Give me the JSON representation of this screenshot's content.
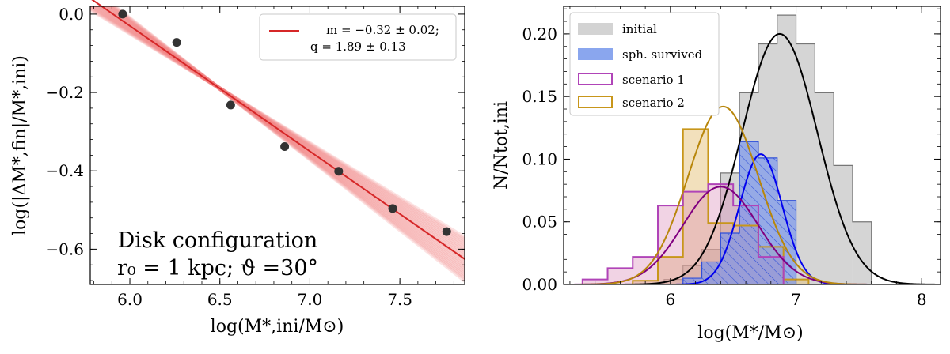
{
  "chart_data": [
    {
      "type": "scatter",
      "panel": "left",
      "xlabel": "log(M*,ini/M⊙)",
      "ylabel": "log(|ΔM*,fin|/M*,ini)",
      "xlim": [
        5.78,
        7.86
      ],
      "ylim": [
        -0.69,
        0.02
      ],
      "xticks": [
        6.0,
        6.5,
        7.0,
        7.5
      ],
      "xtick_labels": [
        "6.0",
        "6.5",
        "7.0",
        "7.5"
      ],
      "yticks": [
        0.0,
        -0.2,
        -0.4,
        -0.6
      ],
      "ytick_labels": [
        "0.0",
        "−0.2",
        "−0.4",
        "−0.6"
      ],
      "points": {
        "x": [
          5.96,
          6.26,
          6.56,
          6.86,
          7.16,
          7.46,
          7.76
        ],
        "y": [
          0.0,
          -0.072,
          -0.232,
          -0.338,
          -0.401,
          -0.496,
          -0.555
        ]
      },
      "fit": {
        "m": -0.32,
        "m_err": 0.02,
        "q": 1.89,
        "q_err": 0.13
      },
      "legend_line1": "m = −0.32 ± 0.02;",
      "legend_line2": "q = 1.89 ± 0.13",
      "annotation_line1": "Disk configuration",
      "annotation_line2": "r₀ = 1 kpc; ϑ =30°",
      "colors": {
        "fit": "#d62728",
        "band": "#f08080",
        "points": "#333333"
      }
    },
    {
      "type": "bar",
      "panel": "right",
      "xlabel": "log(M*/M⊙)",
      "ylabel": "N/Ntot,ini",
      "xlim": [
        5.15,
        8.15
      ],
      "ylim": [
        0.0,
        0.222
      ],
      "xticks": [
        6,
        7,
        8
      ],
      "xtick_labels": [
        "6",
        "7",
        "8"
      ],
      "yticks": [
        0.0,
        0.05,
        0.1,
        0.15,
        0.2
      ],
      "ytick_labels": [
        "0.00",
        "0.05",
        "0.10",
        "0.15",
        "0.20"
      ],
      "series": [
        {
          "name": "initial",
          "bin_edges": [
            5.95,
            6.1,
            6.25,
            6.4,
            6.55,
            6.7,
            6.85,
            7.0,
            7.15,
            7.3,
            7.45,
            7.6
          ],
          "values": [
            0.004,
            0.015,
            0.028,
            0.089,
            0.153,
            0.192,
            0.215,
            0.192,
            0.153,
            0.095,
            0.05
          ],
          "gaussian": {
            "mu": 6.87,
            "sigma": 0.3,
            "peak": 0.2
          },
          "color": "#aaaaaa"
        },
        {
          "name": "sph. survived",
          "bin_edges": [
            6.1,
            6.25,
            6.4,
            6.55,
            6.7,
            6.85,
            7.0
          ],
          "values": [
            0.005,
            0.018,
            0.041,
            0.114,
            0.101,
            0.067
          ],
          "gaussian": {
            "mu": 6.72,
            "sigma": 0.17,
            "peak": 0.104
          },
          "color": "#4169e1"
        },
        {
          "name": "scenario 1",
          "bin_edges": [
            5.3,
            5.5,
            5.7,
            5.9,
            6.1,
            6.3,
            6.5,
            6.7,
            6.9
          ],
          "values": [
            0.004,
            0.013,
            0.022,
            0.063,
            0.074,
            0.08,
            0.063,
            0.022
          ],
          "gaussian": {
            "mu": 6.4,
            "sigma": 0.3,
            "peak": 0.078
          },
          "color": "#b044b8"
        },
        {
          "name": "scenario 2",
          "bin_edges": [
            5.7,
            5.9,
            6.1,
            6.3,
            6.5,
            6.7,
            6.9,
            7.1
          ],
          "values": [
            0.003,
            0.022,
            0.124,
            0.049,
            0.047,
            0.03,
            0.004
          ],
          "gaussian": {
            "mu": 6.42,
            "sigma": 0.28,
            "peak": 0.142
          },
          "color": "#c8961a"
        }
      ],
      "legend": [
        "initial",
        "sph. survived",
        "scenario 1",
        "scenario 2"
      ]
    }
  ]
}
